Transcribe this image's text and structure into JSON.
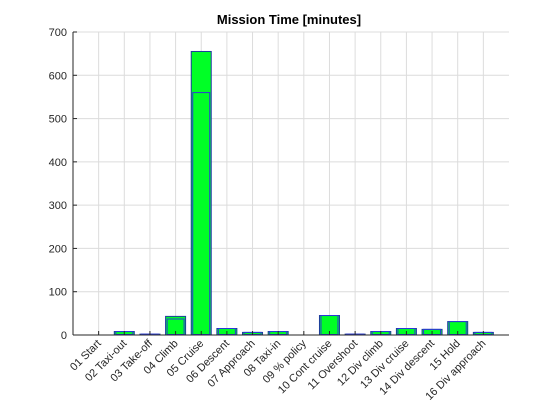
{
  "chart_data": {
    "type": "bar",
    "title": "Mission Time [minutes]",
    "xlabel": "",
    "ylabel": "",
    "ylim": [
      0,
      700
    ],
    "yticks": [
      0,
      100,
      200,
      300,
      400,
      500,
      600,
      700
    ],
    "grid": true,
    "categories": [
      "01 Start",
      "02 Taxi-out",
      "03 Take-off",
      "04 Climb",
      "05 Cruise",
      "06 Descent",
      "07 Approach",
      "08 Taxi-in",
      "09 % policy",
      "10 Cont cruise",
      "11 Overshoot",
      "12 Div climb",
      "13 Div cruise",
      "14 Div descent",
      "15 Hold",
      "16 Div approach"
    ],
    "series": [
      {
        "values": [
          0,
          8,
          2,
          43,
          655,
          15,
          6,
          8,
          0,
          45,
          2,
          8,
          15,
          13,
          31,
          6
        ]
      },
      {
        "values": [
          0,
          8,
          2,
          37,
          560,
          15,
          6,
          8,
          0,
          45,
          2,
          8,
          15,
          13,
          31,
          6
        ]
      }
    ],
    "colors": {
      "bar_fill": "#00ff26",
      "bar_edge": "#1e3a9e",
      "inner_edge": "#2a3bd6"
    }
  }
}
